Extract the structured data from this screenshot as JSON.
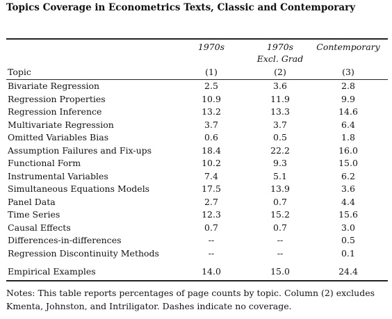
{
  "title": "Topics Coverage in Econometrics Texts, Classic and Contemporary",
  "header": {
    "col1_line1": "1970s",
    "col2_line1": "1970s",
    "col2_line2": "Excl. Grad",
    "col3_line1": "Contemporary",
    "topic_label": "Topic",
    "col1_num": "(1)",
    "col2_num": "(2)",
    "col3_num": "(3)"
  },
  "rows": [
    [
      "Bivariate Regression",
      "2.5",
      "3.6",
      "2.8"
    ],
    [
      "Regression Properties",
      "10.9",
      "11.9",
      "9.9"
    ],
    [
      "Regression Inference",
      "13.2",
      "13.3",
      "14.6"
    ],
    [
      "Multivariate Regression",
      "3.7",
      "3.7",
      "6.4"
    ],
    [
      "Omitted Variables Bias",
      "0.6",
      "0.5",
      "1.8"
    ],
    [
      "Assumption Failures and Fix-ups",
      "18.4",
      "22.2",
      "16.0"
    ],
    [
      "Functional Form",
      "10.2",
      "9.3",
      "15.0"
    ],
    [
      "Instrumental Variables",
      "7.4",
      "5.1",
      "6.2"
    ],
    [
      "Simultaneous Equations Models",
      "17.5",
      "13.9",
      "3.6"
    ],
    [
      "Panel Data",
      "2.7",
      "0.7",
      "4.4"
    ],
    [
      "Time Series",
      "12.3",
      "15.2",
      "15.6"
    ],
    [
      "Causal Effects",
      "0.7",
      "0.7",
      "3.0"
    ],
    [
      "Differences-in-differences",
      "--",
      "--",
      "0.5"
    ],
    [
      "Regression Discontinuity Methods",
      "--",
      "--",
      "0.1"
    ]
  ],
  "empirical": [
    "Empirical Examples",
    "14.0",
    "15.0",
    "24.4"
  ],
  "notes": "Notes: This table reports percentages of page counts by topic. Column (2) excludes Kmenta, Johnston, and Intriligator. Dashes indicate no coverage."
}
